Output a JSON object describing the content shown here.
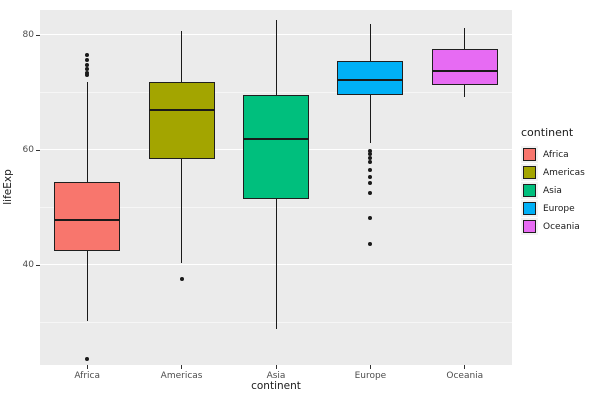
{
  "chart_data": {
    "type": "boxplot",
    "title": "",
    "xlabel": "continent",
    "ylabel": "lifeExp",
    "ylim": [
      22.6,
      84.3
    ],
    "y_ticks": [
      40,
      60,
      80
    ],
    "y_minor_ticks": [
      30,
      50,
      70
    ],
    "categories": [
      "Africa",
      "Americas",
      "Asia",
      "Europe",
      "Oceania"
    ],
    "series": [
      {
        "name": "Africa",
        "color": "#F8766D",
        "lower": 30.2,
        "q1": 42.4,
        "median": 47.8,
        "q3": 54.4,
        "upper": 71.7,
        "outliers": [
          23.6,
          73.0,
          73.4,
          74.0,
          74.8,
          75.6,
          76.4
        ]
      },
      {
        "name": "Americas",
        "color": "#A3A500",
        "lower": 40.4,
        "q1": 58.4,
        "median": 67.0,
        "q3": 71.7,
        "upper": 80.7,
        "outliers": [
          37.6
        ]
      },
      {
        "name": "Asia",
        "color": "#00BF7D",
        "lower": 28.8,
        "q1": 51.4,
        "median": 61.8,
        "q3": 69.5,
        "upper": 82.6,
        "outliers": []
      },
      {
        "name": "Europe",
        "color": "#00B0F6",
        "lower": 61.1,
        "q1": 69.6,
        "median": 72.2,
        "q3": 75.5,
        "upper": 81.8,
        "outliers": [
          59.8,
          59.3,
          58.5,
          57.9,
          56.5,
          55.2,
          54.3,
          52.5,
          48.1,
          43.6
        ]
      },
      {
        "name": "Oceania",
        "color": "#E76BF3",
        "lower": 69.1,
        "q1": 71.2,
        "median": 73.7,
        "q3": 77.6,
        "upper": 81.2,
        "outliers": []
      }
    ],
    "legend": {
      "title": "continent"
    },
    "layout": {
      "panel_background": "#EBEBEB",
      "grid_major_color": "#FFFFFF",
      "grid_minor_color": "#F7F7F7",
      "legend_position": "right",
      "grid": "on"
    }
  }
}
